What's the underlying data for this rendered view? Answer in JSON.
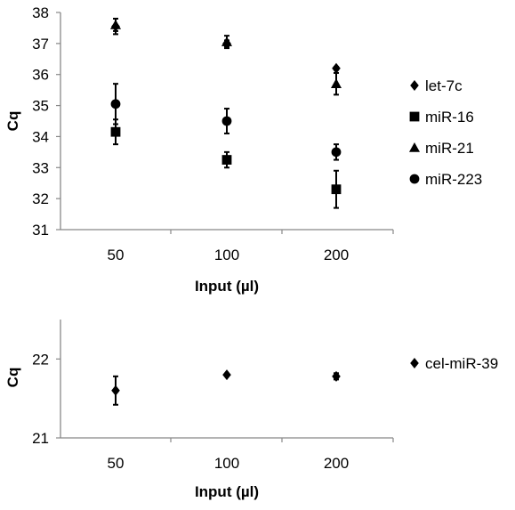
{
  "chart_data": [
    {
      "type": "scatter",
      "x": [
        "50",
        "100",
        "200"
      ],
      "xlabel": "Input (µl)",
      "ylabel": "Cq",
      "ylim": [
        31,
        38
      ],
      "yticks": [
        "31",
        "32",
        "33",
        "34",
        "35",
        "36",
        "37",
        "38"
      ],
      "grid": false,
      "legend_position": "right",
      "series": [
        {
          "name": "let-7c",
          "marker": "diamond",
          "values": [
            37.55,
            37.0,
            36.2
          ],
          "errors": [
            0.25,
            0.1,
            0.05
          ]
        },
        {
          "name": "miR-16",
          "marker": "square",
          "values": [
            34.15,
            33.25,
            32.3
          ],
          "errors": [
            0.4,
            0.25,
            0.6
          ]
        },
        {
          "name": "miR-21",
          "marker": "triangle",
          "values": [
            37.6,
            37.05,
            35.7
          ],
          "errors": [
            0.2,
            0.2,
            0.35
          ]
        },
        {
          "name": "miR-223",
          "marker": "circle",
          "values": [
            35.05,
            34.5,
            33.5
          ],
          "errors": [
            0.65,
            0.4,
            0.25
          ]
        }
      ]
    },
    {
      "type": "scatter",
      "x": [
        "50",
        "100",
        "200"
      ],
      "xlabel": "Input (µl)",
      "ylabel": "Cq",
      "ylim": [
        21,
        22.5
      ],
      "yticks": [
        "21",
        "22"
      ],
      "grid": false,
      "legend_position": "right",
      "series": [
        {
          "name": "cel-miR-39",
          "marker": "diamond",
          "values": [
            21.6,
            21.8,
            21.78
          ],
          "errors": [
            0.18,
            0.0,
            0.04
          ]
        }
      ]
    }
  ]
}
